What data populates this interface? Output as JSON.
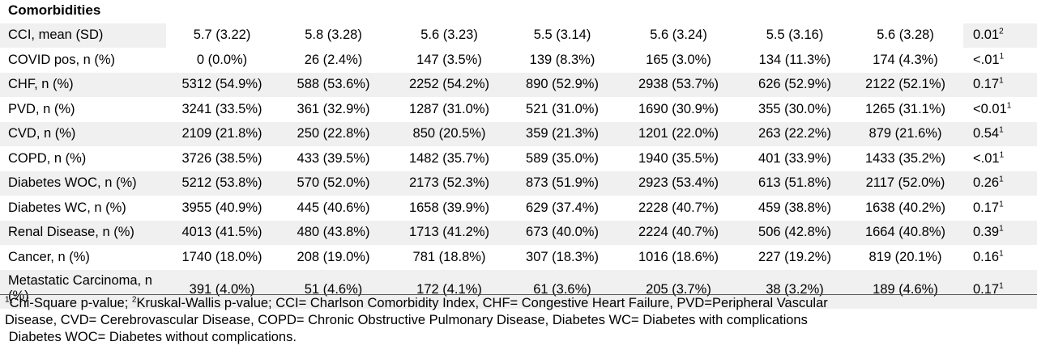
{
  "section_title": "Comorbidities",
  "rows": [
    {
      "label": "CCI, mean (SD)",
      "cells": [
        "5.7 (3.22)",
        "5.8 (3.28)",
        "5.6 (3.23)",
        "5.5 (3.14)",
        "5.6 (3.24)",
        "5.5 (3.16)",
        "5.6 (3.28)"
      ],
      "p": "0.01",
      "sup": "2"
    },
    {
      "label": "COVID pos, n (%)",
      "cells": [
        "0 (0.0%)",
        "26 (2.4%)",
        "147 (3.5%)",
        "139 (8.3%)",
        "165 (3.0%)",
        "134 (11.3%)",
        "174 (4.3%)"
      ],
      "p": "<.01",
      "sup": "1"
    },
    {
      "label": "CHF, n (%)",
      "cells": [
        "5312 (54.9%)",
        "588 (53.6%)",
        "2252 (54.2%)",
        "890 (52.9%)",
        "2938 (53.7%)",
        "626 (52.9%)",
        "2122 (52.1%)"
      ],
      "p": "0.17",
      "sup": "1"
    },
    {
      "label": "PVD, n (%)",
      "cells": [
        "3241 (33.5%)",
        "361 (32.9%)",
        "1287 (31.0%)",
        "521 (31.0%)",
        "1690 (30.9%)",
        "355 (30.0%)",
        "1265 (31.1%)"
      ],
      "p": "<0.01",
      "sup": "1"
    },
    {
      "label": "CVD, n (%)",
      "cells": [
        "2109 (21.8%)",
        "250 (22.8%)",
        "850 (20.5%)",
        "359 (21.3%)",
        "1201 (22.0%)",
        "263 (22.2%)",
        "879 (21.6%)"
      ],
      "p": "0.54",
      "sup": "1"
    },
    {
      "label": "COPD, n (%)",
      "cells": [
        "3726 (38.5%)",
        "433 (39.5%)",
        "1482 (35.7%)",
        "589 (35.0%)",
        "1940 (35.5%)",
        "401 (33.9%)",
        "1433 (35.2%)"
      ],
      "p": "<.01",
      "sup": "1"
    },
    {
      "label": "Diabetes WOC, n (%)",
      "cells": [
        "5212 (53.8%)",
        "570 (52.0%)",
        "2173 (52.3%)",
        "873 (51.9%)",
        "2923 (53.4%)",
        "613 (51.8%)",
        "2117 (52.0%)"
      ],
      "p": "0.26",
      "sup": "1"
    },
    {
      "label": "Diabetes WC, n (%)",
      "cells": [
        "3955 (40.9%)",
        "445 (40.6%)",
        "1658 (39.9%)",
        "629 (37.4%)",
        "2228 (40.7%)",
        "459 (38.8%)",
        "1638 (40.2%)"
      ],
      "p": "0.17",
      "sup": "1"
    },
    {
      "label": "Renal Disease, n (%)",
      "cells": [
        "4013 (41.5%)",
        "480 (43.8%)",
        "1713 (41.2%)",
        "673 (40.0%)",
        "2224 (40.7%)",
        "506 (42.8%)",
        "1664 (40.8%)"
      ],
      "p": "0.39",
      "sup": "1"
    },
    {
      "label": "Cancer, n (%)",
      "cells": [
        "1740 (18.0%)",
        "208 (19.0%)",
        "781 (18.8%)",
        "307 (18.3%)",
        "1016 (18.6%)",
        "227 (19.2%)",
        "819 (20.1%)"
      ],
      "p": "0.16",
      "sup": "1"
    },
    {
      "label": "Metastatic Carcinoma, n (%)",
      "cells": [
        "391 (4.0%)",
        "51 (4.6%)",
        "172 (4.1%)",
        "61 (3.6%)",
        "205 (3.7%)",
        "38 (3.2%)",
        "189 (4.6%)"
      ],
      "p": "0.17",
      "sup": "1"
    }
  ],
  "footnote": {
    "line1_sup1": "1",
    "line1_a": "Chi-Square p-value; ",
    "line1_sup2": "2",
    "line1_b": "Kruskal-Wallis p-value; CCI= Charlson Comorbidity Index, CHF= Congestive Heart Failure, PVD=Peripheral Vascular",
    "line2": "Disease, CVD= Cerebrovascular Disease, COPD= Chronic Obstructive Pulmonary Disease, Diabetes WC= Diabetes with complications",
    "line3": " Diabetes WOC= Diabetes without complications."
  }
}
